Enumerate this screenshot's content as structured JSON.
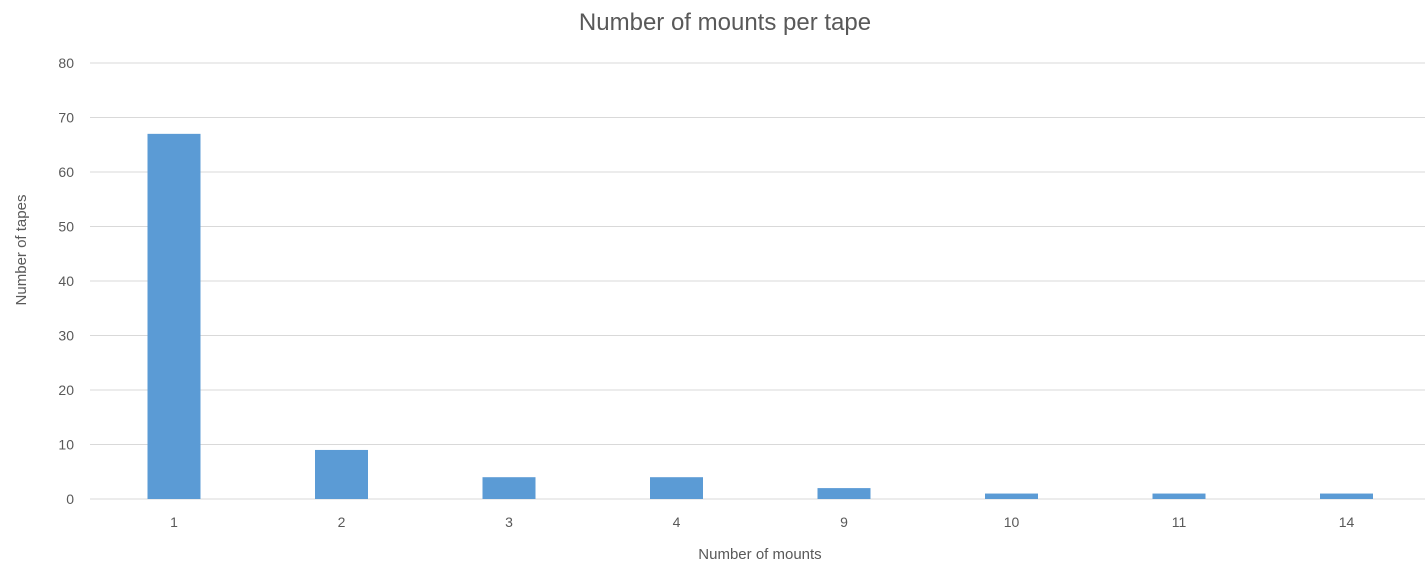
{
  "chart_data": {
    "type": "bar",
    "title": "Number of mounts per tape",
    "xlabel": "Number  of mounts",
    "ylabel": "Number  of tapes",
    "categories": [
      "1",
      "2",
      "3",
      "4",
      "9",
      "10",
      "11",
      "14"
    ],
    "values": [
      67,
      9,
      4,
      4,
      2,
      1,
      1,
      1
    ],
    "ylim": [
      0,
      80
    ],
    "yticks": [
      0,
      10,
      20,
      30,
      40,
      50,
      60,
      70,
      80
    ],
    "grid": true,
    "legend": "none",
    "bar_color": "#5b9bd5"
  }
}
